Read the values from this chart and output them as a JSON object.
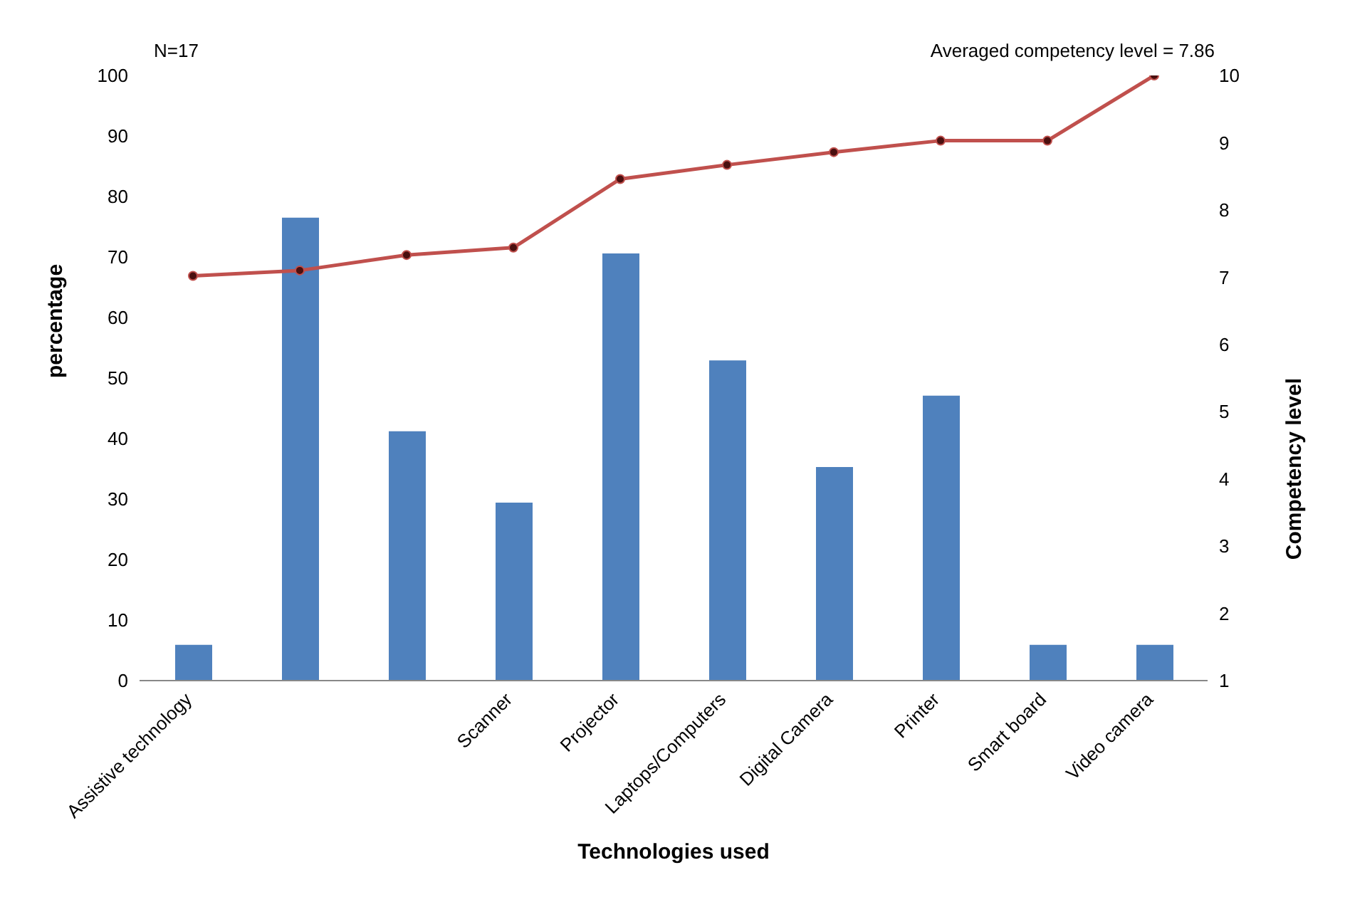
{
  "chart_data": {
    "type": "bar",
    "xlabel": "Technologies used",
    "ylabel": "percentage",
    "y2label": "Competency level",
    "annotations": [
      "N=17",
      "Averaged competency level = 7.86"
    ],
    "categories": [
      "Assistive technology",
      null,
      null,
      "Scanner",
      "Projector",
      "Laptops/Computers",
      "Digital Camera",
      "Printer",
      "Smart board",
      "Video camera"
    ],
    "series": [
      {
        "color": "#4f81bd",
        "values": [
          5.9,
          76.5,
          41.2,
          29.4,
          70.6,
          52.9,
          35.3,
          47.1,
          5.9,
          5.9
        ]
      },
      {
        "type": "line",
        "axis": "y2",
        "color": "#c0504d",
        "marker": "circle",
        "values": [
          7.02,
          7.1,
          7.33,
          7.44,
          8.46,
          8.67,
          8.86,
          9.03,
          9.03,
          10
        ]
      }
    ],
    "ylim": [
      0,
      100
    ],
    "yticks": [
      0,
      10,
      20,
      30,
      40,
      50,
      60,
      70,
      80,
      90,
      100
    ],
    "y2lim": [
      1,
      10
    ],
    "y2ticks": [
      1,
      2,
      3,
      4,
      5,
      6,
      7,
      8,
      9,
      10
    ],
    "grid": false,
    "legend": false
  }
}
